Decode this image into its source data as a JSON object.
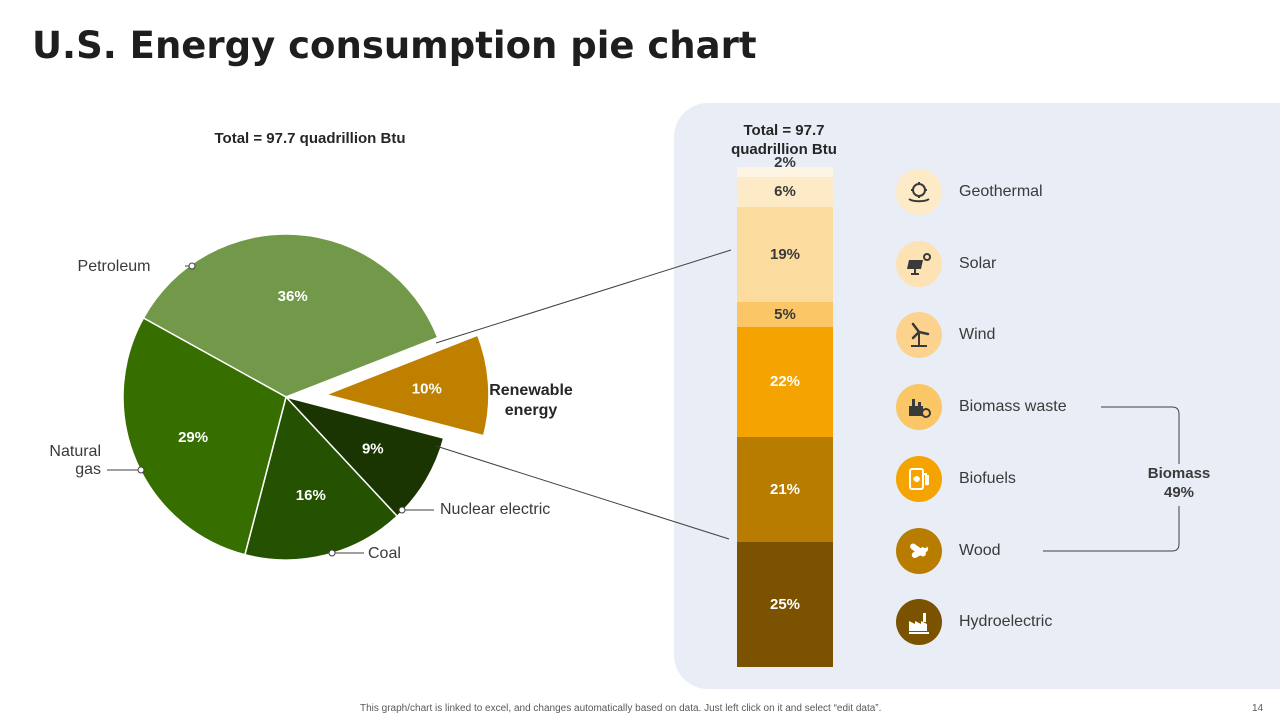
{
  "slide": {
    "title": "U.S. Energy consumption pie chart",
    "footer_note": "This graph/chart is linked to excel, and changes automatically based on data. Just left click on it and select “edit data”.",
    "page_number": "14"
  },
  "chart_data": [
    {
      "type": "pie",
      "title": "Total = 97.7 quadrillion Btu",
      "categories": [
        "Petroleum",
        "Renewable energy",
        "Nuclear electric",
        "Coal",
        "Natural gas"
      ],
      "values": [
        36,
        10,
        9,
        16,
        29
      ],
      "value_labels": [
        "36%",
        "10%",
        "9%",
        "16%",
        "29%"
      ],
      "category_labels": [
        "Petroleum",
        "Renewable\nenergy",
        "Nuclear electric",
        "Coal",
        "Natural\ngas"
      ],
      "exploded": "Renewable energy",
      "colors": [
        "#72994a",
        "#bf8000",
        "#1a3502",
        "#245201",
        "#366e00"
      ],
      "label_colors": [
        "#ffffff",
        "#ffffff",
        "#ffffff",
        "#ffffff",
        "#ffffff"
      ]
    },
    {
      "type": "bar",
      "stacked": true,
      "title": "Total = 97.7 quadrillion Btu",
      "categories": [
        "Hydroelectric",
        "Wood",
        "Biofuels",
        "Biomass waste",
        "Wind",
        "Solar",
        "Geothermal"
      ],
      "values": [
        25,
        21,
        22,
        5,
        19,
        6,
        2
      ],
      "value_labels": [
        "25%",
        "21%",
        "22%",
        "5%",
        "19%",
        "6%",
        "2%"
      ],
      "colors": [
        "#7a5200",
        "#b87d00",
        "#f5a300",
        "#fbc766",
        "#fcdb9e",
        "#fdebc7",
        "#fef4e3"
      ],
      "label_colors": [
        "#ffffff",
        "#ffffff",
        "#ffffff",
        "#3a3a3a",
        "#3a3a3a",
        "#3a3a3a",
        "#3a3a3a"
      ],
      "group_annotation": {
        "text": "Biomass\n49%",
        "members": [
          "Biomass waste",
          "Biofuels",
          "Wood"
        ]
      }
    }
  ],
  "legend": [
    {
      "label": "Geothermal",
      "icon": "geothermal-icon",
      "bg": "#fdebc7",
      "fg": "#3a3a3a"
    },
    {
      "label": "Solar",
      "icon": "solar-panel-icon",
      "bg": "#fde2b4",
      "fg": "#3a3a3a"
    },
    {
      "label": "Wind",
      "icon": "wind-turbine-icon",
      "bg": "#fcd38e",
      "fg": "#3a3a3a"
    },
    {
      "label": "Biomass waste",
      "icon": "biomass-waste-icon",
      "bg": "#fbc766",
      "fg": "#3a3a3a"
    },
    {
      "label": "Biofuels",
      "icon": "biofuel-pump-icon",
      "bg": "#f5a300",
      "fg": "#ffffff"
    },
    {
      "label": "Wood",
      "icon": "wood-logs-icon",
      "bg": "#b87d00",
      "fg": "#ffffff"
    },
    {
      "label": "Hydroelectric",
      "icon": "hydroelectric-plant-icon",
      "bg": "#7a5200",
      "fg": "#ffffff"
    }
  ],
  "colors": {
    "title": "#1e1e1e",
    "panel": "#e9edf6",
    "connector": "#404040"
  }
}
